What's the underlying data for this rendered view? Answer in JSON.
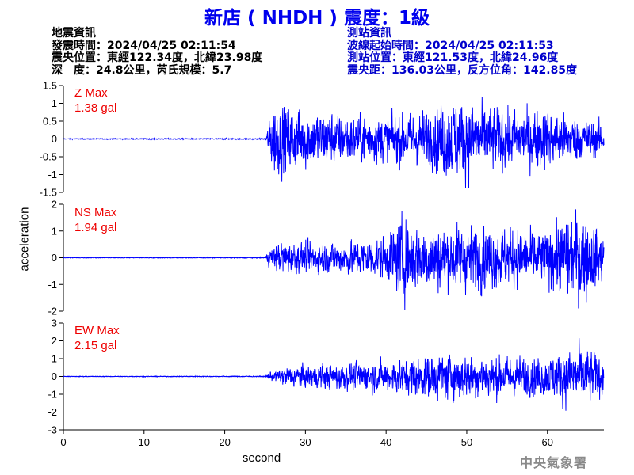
{
  "title": {
    "station_name": "新店",
    "station_code": "( NHDH )",
    "intensity": "震度：1級",
    "color": "#0000ee"
  },
  "earthquake_info": {
    "heading": "地震資訊",
    "time": "發震時間：2024/04/25 02:11:54",
    "epicenter": "震央位置：東經122.34度，北緯23.98度",
    "depth_magnitude": "深　度：24.8公里，芮氏規模：5.7",
    "color": "#000000"
  },
  "station_info": {
    "heading": "測站資訊",
    "wave_start": "波線起始時間：2024/04/25 02:11:53",
    "location": "測站位置：東經121.53度，北緯24.96度",
    "distance_azimuth": "震央距：136.03公里，反方位角：142.85度",
    "color": "#0000cc"
  },
  "credit": "中央氣象署",
  "colors": {
    "trace": "#0000ff",
    "max_label": "#ee0000",
    "axis": "#000000"
  },
  "chart_data": {
    "type": "line",
    "xlabel": "second",
    "ylabel": "acceleration",
    "xlim": [
      0,
      67
    ],
    "xticks": [
      0,
      10,
      20,
      30,
      40,
      50,
      60
    ],
    "panels": [
      {
        "name": "Z",
        "max_label": "Z Max",
        "max_value": "1.38 gal",
        "ylim": [
          -1.5,
          1.5
        ],
        "yticks": [
          -1.5,
          -1,
          -0.5,
          0,
          0.5,
          1,
          1.5
        ],
        "ytick_labels": [
          "-1.5",
          "-1",
          "-0.5",
          "0",
          "0.5",
          "1",
          "1.5"
        ],
        "peak": 1.38,
        "envelope": [
          [
            0,
            0.015
          ],
          [
            25,
            0.02
          ],
          [
            25.5,
            0.5
          ],
          [
            26,
            1.2
          ],
          [
            27,
            1.1
          ],
          [
            30,
            0.9
          ],
          [
            35,
            0.75
          ],
          [
            40,
            0.7
          ],
          [
            45,
            0.85
          ],
          [
            48,
            1.3
          ],
          [
            55,
            0.9
          ],
          [
            60,
            0.9
          ],
          [
            65,
            0.6
          ],
          [
            67,
            0.5
          ]
        ]
      },
      {
        "name": "NS",
        "max_label": "NS Max",
        "max_value": "1.94 gal",
        "ylim": [
          -2,
          2
        ],
        "yticks": [
          -2,
          -1,
          0,
          1,
          2
        ],
        "ytick_labels": [
          "-2",
          "-1",
          "0",
          "1",
          "2"
        ],
        "peak": 1.94,
        "envelope": [
          [
            0,
            0.015
          ],
          [
            25,
            0.02
          ],
          [
            25.5,
            0.3
          ],
          [
            27,
            0.55
          ],
          [
            30,
            0.5
          ],
          [
            35,
            0.55
          ],
          [
            40,
            0.7
          ],
          [
            42,
            1.4
          ],
          [
            44,
            1.1
          ],
          [
            50,
            1.1
          ],
          [
            55,
            1.0
          ],
          [
            60,
            0.9
          ],
          [
            64,
            1.6
          ],
          [
            67,
            0.8
          ]
        ]
      },
      {
        "name": "EW",
        "max_label": "EW Max",
        "max_value": "2.15 gal",
        "ylim": [
          -3,
          3
        ],
        "yticks": [
          -3,
          -2,
          -1,
          0,
          1,
          2,
          3
        ],
        "ytick_labels": [
          "-3",
          "-2",
          "-1",
          "0",
          "1",
          "2",
          "3"
        ],
        "peak": 2.15,
        "envelope": [
          [
            0,
            0.02
          ],
          [
            25,
            0.03
          ],
          [
            25.5,
            0.2
          ],
          [
            28,
            0.6
          ],
          [
            33,
            0.7
          ],
          [
            38,
            0.8
          ],
          [
            42,
            1.0
          ],
          [
            47,
            1.3
          ],
          [
            52,
            1.2
          ],
          [
            56,
            1.1
          ],
          [
            60,
            1.1
          ],
          [
            64,
            1.8
          ],
          [
            67,
            1.0
          ]
        ]
      }
    ]
  }
}
